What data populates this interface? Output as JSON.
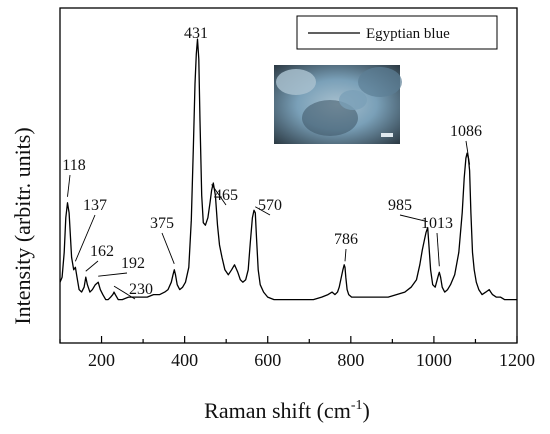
{
  "chart_data": {
    "type": "line",
    "title": "",
    "xlabel_main": "Raman shift (cm",
    "xlabel_sup": "-1",
    "xlabel_close": ")",
    "ylabel": "Intensity (arbitr. units)",
    "xlim": [
      100,
      1200
    ],
    "xticks": [
      200,
      400,
      600,
      800,
      1000,
      1200
    ],
    "xtick_labels": [
      "200",
      "400",
      "600",
      "800",
      "1000",
      "1200"
    ],
    "y_ticks_labeled": false,
    "grid": false,
    "legend_position": "top-right",
    "series": [
      {
        "name": "Egyptian blue",
        "color": "#000000",
        "x": [
          100,
          105,
          110,
          114,
          118,
          122,
          128,
          133,
          137,
          141,
          146,
          152,
          158,
          162,
          166,
          172,
          178,
          185,
          192,
          197,
          203,
          210,
          216,
          222,
          227,
          230,
          233,
          240,
          250,
          265,
          280,
          295,
          310,
          325,
          340,
          352,
          360,
          368,
          372,
          375,
          378,
          382,
          388,
          395,
          402,
          410,
          416,
          421,
          425,
          428,
          431,
          434,
          437,
          441,
          445,
          450,
          456,
          461,
          465,
          469,
          474,
          479,
          484,
          490,
          497,
          505,
          513,
          520,
          528,
          534,
          540,
          547,
          553,
          558,
          563,
          567,
          570,
          573,
          577,
          582,
          590,
          600,
          615,
          630,
          650,
          670,
          690,
          710,
          730,
          745,
          755,
          762,
          768,
          772,
          777,
          781,
          784,
          786,
          788,
          791,
          795,
          802,
          815,
          830,
          850,
          870,
          890,
          910,
          930,
          945,
          958,
          966,
          972,
          977,
          981,
          985,
          988,
          992,
          997,
          1003,
          1008,
          1011,
          1013,
          1016,
          1020,
          1026,
          1033,
          1040,
          1050,
          1060,
          1068,
          1073,
          1077,
          1080,
          1083,
          1086,
          1089,
          1093,
          1097,
          1102,
          1108,
          1116,
          1125,
          1133,
          1137,
          1141,
          1150,
          1160,
          1170,
          1180,
          1190,
          1200
        ],
        "y": [
          0.1,
          0.12,
          0.22,
          0.36,
          0.42,
          0.38,
          0.2,
          0.15,
          0.16,
          0.12,
          0.07,
          0.06,
          0.08,
          0.12,
          0.09,
          0.06,
          0.07,
          0.09,
          0.1,
          0.07,
          0.05,
          0.03,
          0.03,
          0.04,
          0.05,
          0.06,
          0.05,
          0.03,
          0.03,
          0.04,
          0.04,
          0.04,
          0.04,
          0.05,
          0.05,
          0.06,
          0.07,
          0.1,
          0.13,
          0.15,
          0.13,
          0.09,
          0.07,
          0.08,
          0.1,
          0.16,
          0.35,
          0.65,
          0.9,
          1.02,
          1.08,
          1.0,
          0.75,
          0.45,
          0.34,
          0.33,
          0.36,
          0.42,
          0.47,
          0.5,
          0.45,
          0.33,
          0.25,
          0.2,
          0.15,
          0.13,
          0.15,
          0.17,
          0.14,
          0.11,
          0.1,
          0.11,
          0.15,
          0.26,
          0.36,
          0.39,
          0.38,
          0.28,
          0.15,
          0.09,
          0.06,
          0.04,
          0.03,
          0.03,
          0.03,
          0.03,
          0.03,
          0.03,
          0.04,
          0.05,
          0.06,
          0.05,
          0.06,
          0.08,
          0.12,
          0.15,
          0.17,
          0.16,
          0.12,
          0.07,
          0.05,
          0.04,
          0.04,
          0.04,
          0.04,
          0.04,
          0.04,
          0.05,
          0.06,
          0.08,
          0.11,
          0.17,
          0.23,
          0.27,
          0.3,
          0.32,
          0.25,
          0.15,
          0.09,
          0.08,
          0.11,
          0.13,
          0.14,
          0.12,
          0.08,
          0.06,
          0.07,
          0.09,
          0.13,
          0.22,
          0.38,
          0.52,
          0.6,
          0.62,
          0.6,
          0.55,
          0.38,
          0.22,
          0.15,
          0.1,
          0.07,
          0.05,
          0.06,
          0.07,
          0.06,
          0.05,
          0.04,
          0.04,
          0.03,
          0.03,
          0.03,
          0.03
        ]
      }
    ],
    "peak_labels": [
      {
        "text": "118",
        "x": 118
      },
      {
        "text": "137",
        "x": 137
      },
      {
        "text": "162",
        "x": 162
      },
      {
        "text": "192",
        "x": 192
      },
      {
        "text": "230",
        "x": 230
      },
      {
        "text": "375",
        "x": 375
      },
      {
        "text": "431",
        "x": 431
      },
      {
        "text": "465",
        "x": 465
      },
      {
        "text": "570",
        "x": 570
      },
      {
        "text": "786",
        "x": 786
      },
      {
        "text": "985",
        "x": 985
      },
      {
        "text": "1013",
        "x": 1013
      },
      {
        "text": "1086",
        "x": 1086
      }
    ]
  },
  "inset_photo": {
    "colors": [
      "#5d7f95",
      "#7aa0b8",
      "#3e5566",
      "#a8c0ce",
      "#2c3a44"
    ]
  }
}
